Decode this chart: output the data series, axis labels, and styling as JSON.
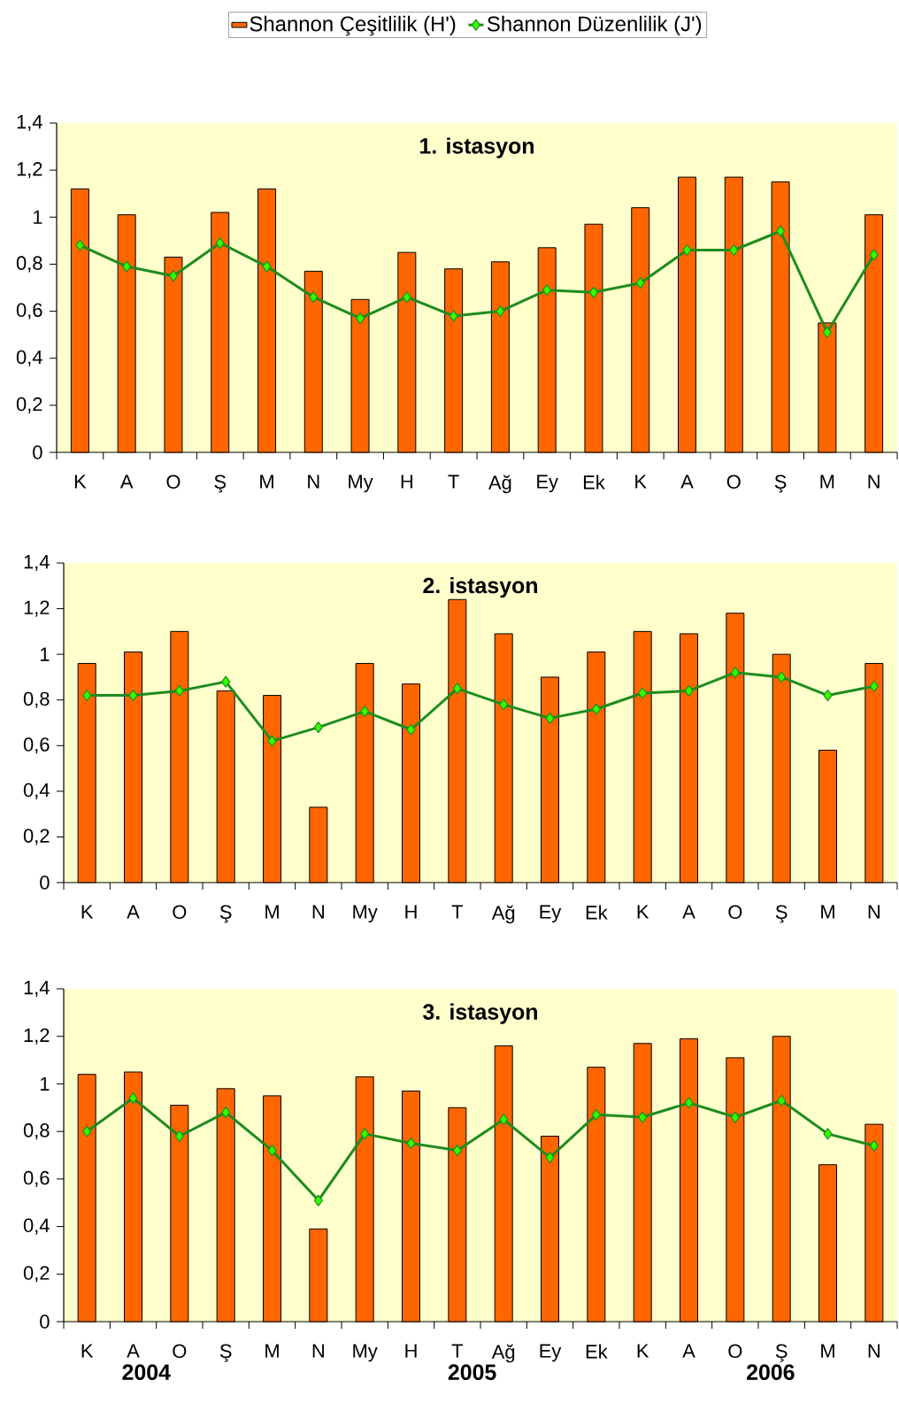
{
  "chart_data": [
    {
      "type": "bar",
      "title": "1. istasyon",
      "legend": "top",
      "categories": [
        "K",
        "A",
        "O",
        "Ş",
        "M",
        "N",
        "My",
        "H",
        "T",
        "Ağ",
        "Ey",
        "Ek",
        "K",
        "A",
        "O",
        "Ş",
        "M",
        "N"
      ],
      "ylim": [
        0,
        1.4
      ],
      "yticks": [
        0,
        {
          "value": 0.2,
          "label": "0,2"
        },
        {
          "value": 0.4,
          "label": "0,4"
        },
        {
          "value": 0.6,
          "label": "0,6"
        },
        {
          "value": 0.8,
          "label": "0,8"
        },
        1,
        {
          "value": 1.2,
          "label": "1,2"
        },
        {
          "value": 1.4,
          "label": "1,4"
        }
      ],
      "series": [
        {
          "name": "Shannon Çeşitlilik (H')",
          "color": "#ff6600",
          "values": [
            1.12,
            1.01,
            0.83,
            1.02,
            1.12,
            0.77,
            0.65,
            0.85,
            0.78,
            0.81,
            0.87,
            0.97,
            1.04,
            1.17,
            1.17,
            1.15,
            0.55,
            1.01
          ]
        },
        {
          "name": "Shannon Düzenlilik (J')",
          "type": "line",
          "color": "#1e8c1e",
          "marker": "diamond",
          "line_style": "solid",
          "values": [
            0.88,
            0.79,
            0.75,
            0.89,
            0.79,
            0.66,
            0.57,
            0.66,
            0.58,
            0.6,
            0.69,
            0.68,
            0.72,
            0.86,
            0.86,
            0.94,
            0.51,
            0.84
          ]
        }
      ]
    },
    {
      "type": "bar",
      "title": "2. istasyon",
      "categories": [
        "K",
        "A",
        "O",
        "Ş",
        "M",
        "N",
        "My",
        "H",
        "T",
        "Ağ",
        "Ey",
        "Ek",
        "K",
        "A",
        "O",
        "Ş",
        "M",
        "N"
      ],
      "ylim": [
        0,
        1.4
      ],
      "yticks": [
        0,
        {
          "value": 0.2,
          "label": "0,2"
        },
        {
          "value": 0.4,
          "label": "0,4"
        },
        {
          "value": 0.6,
          "label": "0,6"
        },
        {
          "value": 0.8,
          "label": "0,8"
        },
        1,
        {
          "value": 1.2,
          "label": "1,2"
        },
        {
          "value": 1.4,
          "label": "1,4"
        }
      ],
      "series": [
        {
          "color": "#ff6600",
          "values": [
            0.96,
            1.01,
            1.1,
            0.84,
            0.82,
            0.33,
            0.96,
            0.87,
            1.24,
            1.09,
            0.9,
            1.01,
            1.1,
            1.09,
            1.18,
            1.0,
            0.58,
            0.96
          ]
        },
        {
          "type": "line",
          "color": "#1e8c1e",
          "marker": "diamond",
          "line_style": "solid",
          "values": [
            0.82,
            0.82,
            0.84,
            0.88,
            0.62,
            0.68,
            0.75,
            0.67,
            0.85,
            0.78,
            0.72,
            0.76,
            0.83,
            0.84,
            0.92,
            0.9,
            0.82,
            0.86
          ]
        }
      ]
    },
    {
      "type": "bar",
      "title": "3. istasyon",
      "categories": [
        "K",
        "A",
        "O",
        "Ş",
        "M",
        "N",
        "My",
        "H",
        "T",
        "Ağ",
        "Ey",
        "Ek",
        "K",
        "A",
        "O",
        "Ş",
        "M",
        "N"
      ],
      "ylim": [
        0,
        1.4
      ],
      "yticks": [
        0,
        {
          "value": 0.2,
          "label": "0,2"
        },
        {
          "value": 0.4,
          "label": "0,4"
        },
        {
          "value": 0.6,
          "label": "0,6"
        },
        {
          "value": 0.8,
          "label": "0,8"
        },
        1,
        {
          "value": 1.2,
          "label": "1,2"
        },
        {
          "value": 1.4,
          "label": "1,4"
        }
      ],
      "annotations": [
        "2004",
        "2005",
        "2006"
      ],
      "series": [
        {
          "color": "#ff6600",
          "values": [
            1.04,
            1.05,
            0.91,
            0.98,
            0.95,
            0.39,
            1.03,
            0.97,
            0.9,
            1.16,
            0.78,
            1.07,
            1.17,
            1.19,
            1.11,
            1.2,
            0.66,
            0.83
          ]
        },
        {
          "type": "line",
          "color": "#1e8c1e",
          "marker": "diamond",
          "line_style": "solid",
          "values": [
            0.8,
            0.94,
            0.78,
            0.88,
            0.72,
            0.51,
            0.79,
            0.75,
            0.72,
            0.85,
            0.69,
            0.87,
            0.86,
            0.92,
            0.86,
            0.93,
            0.79,
            0.74
          ]
        }
      ]
    }
  ]
}
